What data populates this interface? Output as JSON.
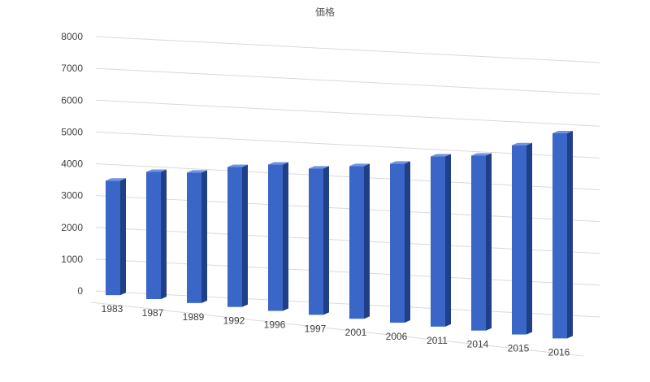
{
  "chart_data": {
    "type": "bar",
    "title": "価格",
    "categories": [
      "1983",
      "1987",
      "1989",
      "1992",
      "1996",
      "1997",
      "2001",
      "2006",
      "2011",
      "2014",
      "2015",
      "2016"
    ],
    "values": [
      3600,
      4000,
      4100,
      4400,
      4600,
      4600,
      4800,
      5000,
      5350,
      5500,
      5950,
      6450
    ],
    "ylim": [
      0,
      8000
    ],
    "yticks": [
      "0",
      "1000",
      "2000",
      "3000",
      "4000",
      "5000",
      "6000",
      "7000",
      "8000"
    ],
    "xlabel": "",
    "ylabel": "",
    "grid": true,
    "legend": "none",
    "style": "3d-perspective",
    "colors": {
      "bar_front": "#3a66c8",
      "bar_side": "#1f3f88",
      "bar_top": "#6f93e0",
      "grid": "#d9d9d9"
    }
  }
}
